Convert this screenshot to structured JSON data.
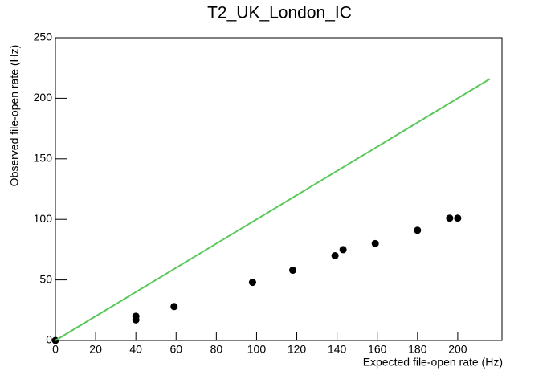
{
  "chart_data": {
    "type": "scatter",
    "title": "T2_UK_London_IC",
    "x_label": "Expected file-open rate (Hz)",
    "y_label": "Observed file-open rate (Hz)",
    "xlim": [
      0,
      222
    ],
    "ylim": [
      0,
      250
    ],
    "xticks": [
      0,
      20,
      40,
      60,
      80,
      100,
      120,
      140,
      160,
      180,
      200
    ],
    "yticks": [
      0,
      50,
      100,
      150,
      200,
      250
    ],
    "series": [
      {
        "mode": "markers",
        "color": "#000000",
        "x": [
          0,
          40,
          40,
          59,
          98,
          118,
          139,
          143,
          159,
          180,
          196,
          200
        ],
        "values": [
          0,
          20,
          17,
          28,
          48,
          58,
          70,
          75,
          80,
          91,
          101,
          101
        ]
      },
      {
        "mode": "line",
        "color": "#5ac85a",
        "x": [
          0,
          216
        ],
        "values": [
          0,
          216
        ]
      }
    ]
  }
}
